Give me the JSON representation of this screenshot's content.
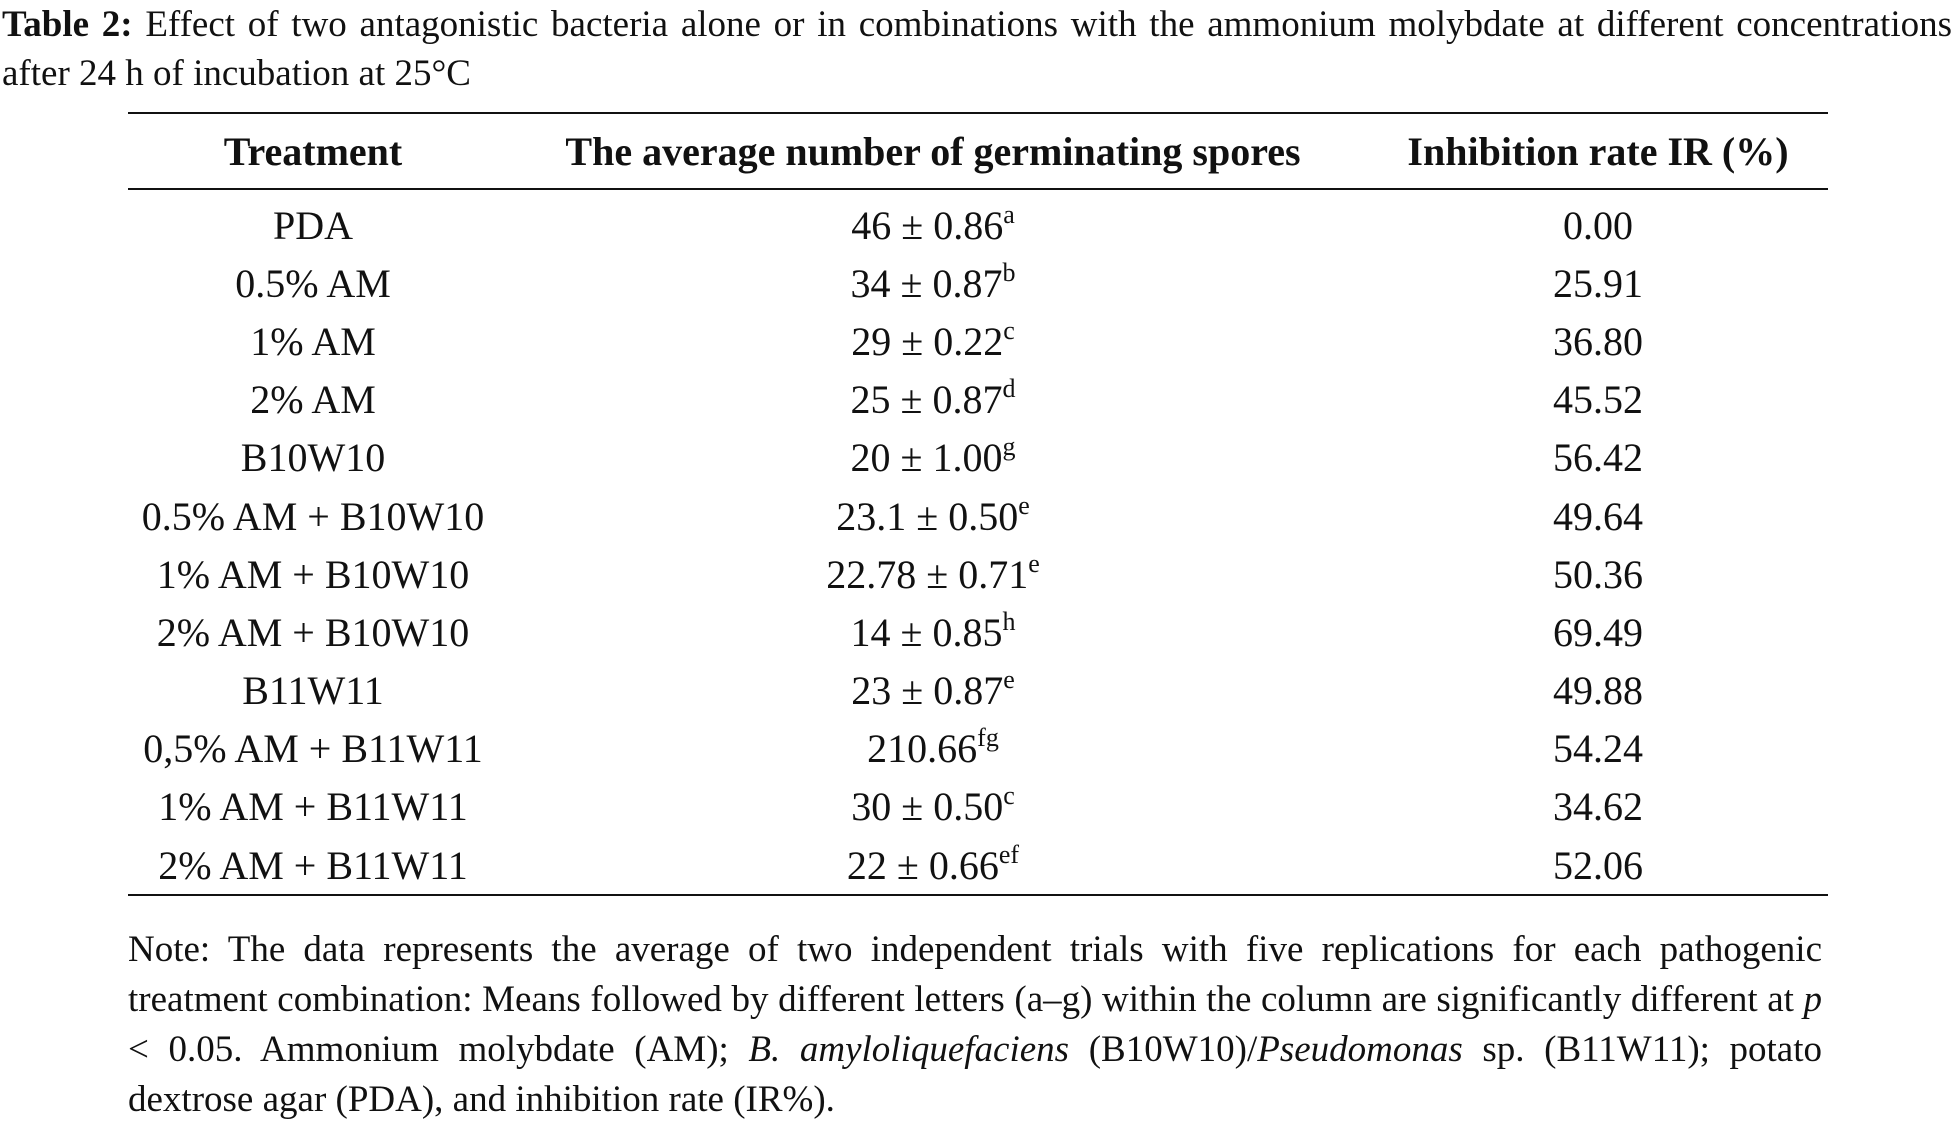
{
  "caption": {
    "label": "Table 2:",
    "text": " Effect of two antagonistic bacteria alone or in combinations with the ammonium molybdate at different concentrations after 24 h of incubation at 25°C"
  },
  "table": {
    "headers": [
      "Treatment",
      "The average number of germinating spores",
      "Inhibition rate IR (%)"
    ],
    "rows": [
      {
        "treatment": "PDA",
        "spores": "46 ± 0.86",
        "sup": "a",
        "ir": "0.00"
      },
      {
        "treatment": "0.5% AM",
        "spores": "34 ± 0.87",
        "sup": "b",
        "ir": "25.91"
      },
      {
        "treatment": "1% AM",
        "spores": "29 ± 0.22",
        "sup": "c",
        "ir": "36.80"
      },
      {
        "treatment": "2% AM",
        "spores": "25 ± 0.87",
        "sup": "d",
        "ir": "45.52"
      },
      {
        "treatment": "B10W10",
        "spores": "20 ± 1.00",
        "sup": "g",
        "ir": "56.42"
      },
      {
        "treatment": "0.5% AM + B10W10",
        "spores": "23.1 ± 0.50",
        "sup": "e",
        "ir": "49.64"
      },
      {
        "treatment": "1% AM + B10W10",
        "spores": "22.78 ± 0.71",
        "sup": "e",
        "ir": "50.36"
      },
      {
        "treatment": "2% AM + B10W10",
        "spores": "14 ± 0.85",
        "sup": "h",
        "ir": "69.49"
      },
      {
        "treatment": "B11W11",
        "spores": "23 ± 0.87",
        "sup": "e",
        "ir": "49.88"
      },
      {
        "treatment": "0,5% AM + B11W11",
        "spores": "210.66",
        "sup": "fg",
        "ir": "54.24"
      },
      {
        "treatment": "1% AM + B11W11",
        "spores": "30 ± 0.50",
        "sup": "c",
        "ir": "34.62"
      },
      {
        "treatment": "2% AM + B11W11",
        "spores": "22 ± 0.66",
        "sup": "ef",
        "ir": "52.06"
      }
    ]
  },
  "note": {
    "part1": "Note: The data represents the average of two independent trials with five replications for each pathogenic treatment combination: Means followed by different letters (a–g) within the column are significantly different at ",
    "p_symbol": "p",
    "part2": " < 0.05. Ammonium molybdate (AM); ",
    "species1": "B. amyloliquefaciens",
    "part3": " (B10W10)/",
    "species2": "Pseudomonas",
    "part4": " sp. (B11W11); potato dextrose agar (PDA), and inhibition rate (IR%)."
  }
}
